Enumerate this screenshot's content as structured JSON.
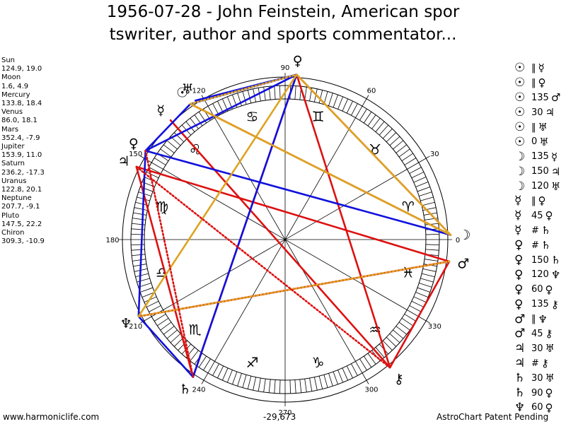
{
  "title": {
    "line1": "1956-07-28 - John Feinstein, American spor",
    "line2": "tswriter, author and sports commentator..."
  },
  "planets": [
    {
      "name": "Sun",
      "coords": "124.9, 19.0",
      "lon": 124.9,
      "symbol": "☉",
      "color": "#000000"
    },
    {
      "name": "Moon",
      "coords": "1.6, 4.9",
      "lon": 1.6,
      "symbol": "☽",
      "color": "#000000"
    },
    {
      "name": "Mercury",
      "coords": "133.8, 18.4",
      "lon": 133.8,
      "symbol": "☿",
      "color": "#000000"
    },
    {
      "name": "Venus",
      "coords": "86.0, 18.1",
      "lon": 86.0,
      "symbol": "♀",
      "color": "#000000"
    },
    {
      "name": "Mars",
      "coords": "352.4, -7.9",
      "lon": 352.4,
      "symbol": "♂",
      "color": "#000000"
    },
    {
      "name": "Jupiter",
      "coords": "153.9, 11.0",
      "lon": 153.9,
      "symbol": "♃",
      "color": "#000000"
    },
    {
      "name": "Saturn",
      "coords": "236.2, -17.3",
      "lon": 236.2,
      "symbol": "♄",
      "color": "#000000"
    },
    {
      "name": "Uranus",
      "coords": "122.8, 20.1",
      "lon": 122.8,
      "symbol": "♅",
      "color": "#000000"
    },
    {
      "name": "Neptune",
      "coords": "207.7, -9.1",
      "lon": 207.7,
      "symbol": "♆",
      "color": "#000000"
    },
    {
      "name": "Pluto",
      "coords": "147.5, 22.2",
      "lon": 147.5,
      "symbol": "♀",
      "color": "#000000"
    },
    {
      "name": "Chiron",
      "coords": "309.3, -10.9",
      "lon": 309.3,
      "symbol": "⚷",
      "color": "#000000"
    }
  ],
  "degree_labels": [
    {
      "deg": 0,
      "text": "0"
    },
    {
      "deg": 30,
      "text": "30"
    },
    {
      "deg": 60,
      "text": "60"
    },
    {
      "deg": 90,
      "text": "90"
    },
    {
      "deg": 120,
      "text": "120"
    },
    {
      "deg": 150,
      "text": "150"
    },
    {
      "deg": 180,
      "text": "180"
    },
    {
      "deg": 210,
      "text": "210"
    },
    {
      "deg": 240,
      "text": "240"
    },
    {
      "deg": 270,
      "text": "270"
    },
    {
      "deg": 300,
      "text": "300"
    },
    {
      "deg": 330,
      "text": "330"
    }
  ],
  "zodiac_signs": [
    "♈",
    "♉",
    "♊",
    "♋",
    "♌",
    "♍",
    "♎",
    "♏",
    "♐",
    "♑",
    "♒",
    "♓"
  ],
  "aspect_lines": [
    {
      "a": 3,
      "b": 1,
      "color": "#dd1111",
      "dashed": false
    },
    {
      "a": 3,
      "b": 6,
      "color": "#dd1111",
      "dashed": false
    },
    {
      "a": 3,
      "b": 10,
      "color": "#dd1111",
      "dashed": false
    },
    {
      "a": 0,
      "b": 1,
      "color": "#dd1111",
      "dashed": false
    },
    {
      "a": 2,
      "b": 10,
      "color": "#dd1111",
      "dashed": false
    },
    {
      "a": 4,
      "b": 5,
      "color": "#dd1111",
      "dashed": false
    },
    {
      "a": 4,
      "b": 8,
      "color": "#dd1111",
      "dashed": false
    },
    {
      "a": 5,
      "b": 6,
      "color": "#dd1111",
      "dashed": false
    },
    {
      "a": 4,
      "b": 10,
      "color": "#dd1111",
      "dashed": false
    },
    {
      "a": 3,
      "b": 9,
      "color": "#1111dd",
      "dashed": false
    },
    {
      "a": 3,
      "b": 0,
      "color": "#1111dd",
      "dashed": false
    },
    {
      "a": 3,
      "b": 7,
      "color": "#1111dd",
      "dashed": false
    },
    {
      "a": 3,
      "b": 6,
      "color": "#1111dd",
      "dashed": false
    },
    {
      "a": 9,
      "b": 1,
      "color": "#1111dd",
      "dashed": false
    },
    {
      "a": 9,
      "b": 8,
      "color": "#1111dd",
      "dashed": false
    },
    {
      "a": 8,
      "b": 6,
      "color": "#1111dd",
      "dashed": false
    },
    {
      "a": 0,
      "b": 9,
      "color": "#1111dd",
      "dashed": false
    },
    {
      "a": 3,
      "b": 1,
      "color": "#dda422",
      "dashed": false
    },
    {
      "a": 3,
      "b": 8,
      "color": "#dda422",
      "dashed": false
    },
    {
      "a": 0,
      "b": 1,
      "color": "#dda422",
      "dashed": false
    },
    {
      "a": 8,
      "b": 4,
      "color": "#dda422",
      "dashed": true
    },
    {
      "a": 0,
      "b": 3,
      "color": "#dda422",
      "dashed": true
    },
    {
      "a": 5,
      "b": 10,
      "color": "#dd1111",
      "dashed": true
    },
    {
      "a": 9,
      "b": 6,
      "color": "#dd1111",
      "dashed": true
    }
  ],
  "aspect_list": [
    {
      "p1": "☉",
      "code": "‖",
      "p2": "☿"
    },
    {
      "p1": "☉",
      "code": "‖",
      "p2": "♀"
    },
    {
      "p1": "☉",
      "code": "135",
      "p2": "♂"
    },
    {
      "p1": "☉",
      "code": "30",
      "p2": "♃"
    },
    {
      "p1": "☉",
      "code": "‖",
      "p2": "♅"
    },
    {
      "p1": "☉",
      "code": "0",
      "p2": "♅"
    },
    {
      "p1": "☽",
      "code": "135",
      "p2": "☿"
    },
    {
      "p1": "☽",
      "code": "150",
      "p2": "♃"
    },
    {
      "p1": "☽",
      "code": "120",
      "p2": "♅"
    },
    {
      "p1": "☿",
      "code": "‖",
      "p2": "♀"
    },
    {
      "p1": "☿",
      "code": "45",
      "p2": "♀"
    },
    {
      "p1": "☿",
      "code": "#",
      "p2": "♄"
    },
    {
      "p1": "♀",
      "code": "#",
      "p2": "♄"
    },
    {
      "p1": "♀",
      "code": "150",
      "p2": "♄"
    },
    {
      "p1": "♀",
      "code": "120",
      "p2": "♆"
    },
    {
      "p1": "♀",
      "code": "60",
      "p2": "♀"
    },
    {
      "p1": "♀",
      "code": "135",
      "p2": "⚷"
    },
    {
      "p1": "♂",
      "code": "‖",
      "p2": "♆"
    },
    {
      "p1": "♂",
      "code": "45",
      "p2": "⚷"
    },
    {
      "p1": "♃",
      "code": "30",
      "p2": "♅"
    },
    {
      "p1": "♃",
      "code": "#",
      "p2": "⚷"
    },
    {
      "p1": "♄",
      "code": "30",
      "p2": "♅"
    },
    {
      "p1": "♄",
      "code": "90",
      "p2": "♀"
    },
    {
      "p1": "♆",
      "code": "60",
      "p2": "♀"
    }
  ],
  "footer": {
    "left": "www.harmoniclife.com",
    "center": "-29,673",
    "right": "AstroChart Patent Pending"
  }
}
